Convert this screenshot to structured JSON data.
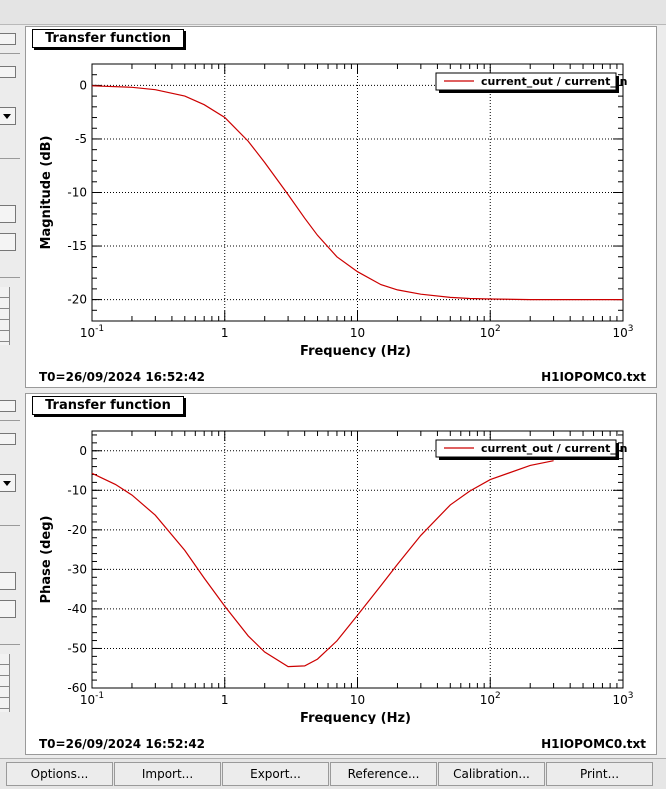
{
  "panels": [
    {
      "title": "Transfer function",
      "footer_left": "T0=26/09/2024 16:52:42",
      "footer_right": "H1IOPOMC0.txt",
      "chart_data": {
        "type": "line",
        "xlabel": "Frequency (Hz)",
        "ylabel": "Magnitude (dB)",
        "xscale": "log",
        "xlim": [
          0.1,
          1000
        ],
        "ylim": [
          -22,
          2
        ],
        "xticks": [
          "10^-1",
          "1",
          "10",
          "10^2",
          "10^3"
        ],
        "yticks": [
          0,
          -5,
          -10,
          -15,
          -20
        ],
        "grid": true,
        "legend_position": "top-right",
        "series": [
          {
            "name": "current_out / current_in",
            "color": "#cc0000",
            "x": [
              0.1,
              0.2,
              0.3,
              0.5,
              0.7,
              1,
              1.5,
              2,
              3,
              4,
              5,
              7,
              10,
              15,
              20,
              30,
              50,
              70,
              100,
              200,
              500,
              1000
            ],
            "y": [
              -0.04,
              -0.18,
              -0.4,
              -1.0,
              -1.8,
              -3.0,
              -5.2,
              -7.2,
              -10.2,
              -12.4,
              -14.0,
              -16.0,
              -17.4,
              -18.6,
              -19.1,
              -19.5,
              -19.8,
              -19.9,
              -19.95,
              -20.0,
              -20.0,
              -20.0
            ]
          }
        ]
      }
    },
    {
      "title": "Transfer function",
      "footer_left": "T0=26/09/2024 16:52:42",
      "footer_right": "H1IOPOMC0.txt",
      "chart_data": {
        "type": "line",
        "xlabel": "Frequency (Hz)",
        "ylabel": "Phase (deg)",
        "xscale": "log",
        "xlim": [
          0.1,
          1000
        ],
        "ylim": [
          -60,
          5
        ],
        "xticks": [
          "10^-1",
          "1",
          "10",
          "10^2",
          "10^3"
        ],
        "yticks": [
          0,
          -10,
          -20,
          -30,
          -40,
          -50,
          -60
        ],
        "grid": true,
        "legend_position": "top-right",
        "series": [
          {
            "name": "current_out / current_in",
            "color": "#cc0000",
            "x": [
              0.1,
              0.15,
              0.2,
              0.3,
              0.5,
              0.7,
              1,
              1.5,
              2,
              3,
              4,
              5,
              7,
              10,
              15,
              20,
              30,
              50,
              70,
              100,
              200,
              300
            ],
            "y": [
              -5.7,
              -8.5,
              -11.2,
              -16.3,
              -25.2,
              -32.2,
              -39.3,
              -46.8,
              -50.9,
              -54.6,
              -54.4,
              -52.7,
              -48.1,
              -41.6,
              -34.1,
              -28.7,
              -21.4,
              -13.7,
              -10.2,
              -7.3,
              -3.7,
              -2.5
            ]
          }
        ]
      }
    }
  ],
  "buttons": [
    "Options...",
    "Import...",
    "Export...",
    "Reference...",
    "Calibration...",
    "Print..."
  ]
}
